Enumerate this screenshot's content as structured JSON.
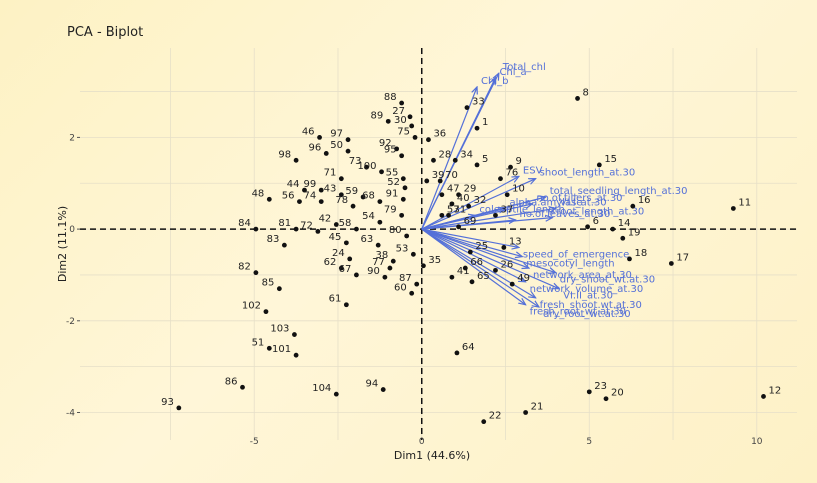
{
  "chart_data": {
    "type": "scatter",
    "title": "PCA - Biplot",
    "xlabel": "Dim1 (44.6%)",
    "ylabel": "Dim2 (11.1%)",
    "xlim": [
      -10.2,
      11.2
    ],
    "ylim": [
      -4.6,
      3.95
    ],
    "x_ticks": [
      -5,
      0,
      5,
      10
    ],
    "y_ticks": [
      -4,
      -2,
      0,
      2
    ],
    "grid": true,
    "colors": {
      "points": "#111111",
      "variables": "#5470d8",
      "grid": "#e6dfc8",
      "zero_line": "#111111"
    },
    "individuals": [
      {
        "label": "1",
        "x": 1.65,
        "y": 2.2
      },
      {
        "label": "5",
        "x": 1.65,
        "y": 1.4
      },
      {
        "label": "6",
        "x": 4.95,
        "y": 0.05
      },
      {
        "label": "8",
        "x": 4.65,
        "y": 2.85
      },
      {
        "label": "9",
        "x": 2.65,
        "y": 1.35
      },
      {
        "label": "10",
        "x": 2.55,
        "y": 0.75
      },
      {
        "label": "11",
        "x": 9.3,
        "y": 0.45
      },
      {
        "label": "12",
        "x": 10.2,
        "y": -3.65
      },
      {
        "label": "13",
        "x": 2.45,
        "y": -0.4
      },
      {
        "label": "14",
        "x": 5.7,
        "y": 0.0
      },
      {
        "label": "15",
        "x": 5.3,
        "y": 1.4
      },
      {
        "label": "16",
        "x": 6.3,
        "y": 0.5
      },
      {
        "label": "17",
        "x": 7.45,
        "y": -0.75
      },
      {
        "label": "18",
        "x": 6.2,
        "y": -0.65
      },
      {
        "label": "19",
        "x": 6.0,
        "y": -0.2
      },
      {
        "label": "20",
        "x": 5.5,
        "y": -3.7
      },
      {
        "label": "21",
        "x": 3.1,
        "y": -4.0
      },
      {
        "label": "22",
        "x": 1.85,
        "y": -4.2
      },
      {
        "label": "23",
        "x": 5.0,
        "y": -3.55
      },
      {
        "label": "24",
        "x": -2.15,
        "y": -0.65
      },
      {
        "label": "25",
        "x": 1.45,
        "y": -0.5
      },
      {
        "label": "26",
        "x": 2.2,
        "y": -0.9
      },
      {
        "label": "27",
        "x": -0.35,
        "y": 2.45
      },
      {
        "label": "28",
        "x": 0.35,
        "y": 1.5
      },
      {
        "label": "29",
        "x": 1.1,
        "y": 0.75
      },
      {
        "label": "30",
        "x": -0.3,
        "y": 2.25
      },
      {
        "label": "31",
        "x": 0.8,
        "y": 0.3
      },
      {
        "label": "32",
        "x": 1.4,
        "y": 0.5
      },
      {
        "label": "33",
        "x": 1.35,
        "y": 2.65
      },
      {
        "label": "34",
        "x": 1.0,
        "y": 1.5
      },
      {
        "label": "35",
        "x": 0.05,
        "y": -0.8
      },
      {
        "label": "36",
        "x": 0.2,
        "y": 1.95
      },
      {
        "label": "37",
        "x": 2.2,
        "y": 0.3
      },
      {
        "label": "38",
        "x": -0.85,
        "y": -0.7
      },
      {
        "label": "39",
        "x": 0.15,
        "y": 1.05
      },
      {
        "label": "40",
        "x": 0.9,
        "y": 0.55
      },
      {
        "label": "41",
        "x": 0.9,
        "y": -1.05
      },
      {
        "label": "42",
        "x": -2.55,
        "y": 0.1
      },
      {
        "label": "43",
        "x": -2.4,
        "y": 0.75
      },
      {
        "label": "44",
        "x": -3.5,
        "y": 0.85
      },
      {
        "label": "45",
        "x": -2.25,
        "y": -0.3
      },
      {
        "label": "46",
        "x": -3.05,
        "y": 2.0
      },
      {
        "label": "47",
        "x": 0.6,
        "y": 0.75
      },
      {
        "label": "48",
        "x": -4.55,
        "y": 0.65
      },
      {
        "label": "49",
        "x": 2.7,
        "y": -1.2
      },
      {
        "label": "50",
        "x": -2.2,
        "y": 1.7
      },
      {
        "label": "51",
        "x": -4.55,
        "y": -2.6
      },
      {
        "label": "52",
        "x": -0.5,
        "y": 0.9
      },
      {
        "label": "53",
        "x": -0.25,
        "y": -0.55
      },
      {
        "label": "54",
        "x": -1.25,
        "y": 0.15
      },
      {
        "label": "55",
        "x": -0.55,
        "y": 1.1
      },
      {
        "label": "56",
        "x": -3.65,
        "y": 0.6
      },
      {
        "label": "57",
        "x": 0.6,
        "y": 0.3
      },
      {
        "label": "58",
        "x": -1.95,
        "y": 0.0
      },
      {
        "label": "59",
        "x": -1.75,
        "y": 0.7
      },
      {
        "label": "60",
        "x": -0.3,
        "y": -1.4
      },
      {
        "label": "61",
        "x": -2.25,
        "y": -1.65
      },
      {
        "label": "62",
        "x": -2.4,
        "y": -0.85
      },
      {
        "label": "63",
        "x": -1.3,
        "y": -0.35
      },
      {
        "label": "64",
        "x": 1.05,
        "y": -2.7
      },
      {
        "label": "65",
        "x": 1.5,
        "y": -1.15
      },
      {
        "label": "66",
        "x": 1.3,
        "y": -0.85
      },
      {
        "label": "67",
        "x": -1.95,
        "y": -1.0
      },
      {
        "label": "68",
        "x": -1.25,
        "y": 0.6
      },
      {
        "label": "69",
        "x": 1.1,
        "y": 0.05
      },
      {
        "label": "70",
        "x": 0.55,
        "y": 1.05
      },
      {
        "label": "71",
        "x": -2.4,
        "y": 1.1
      },
      {
        "label": "72",
        "x": -3.1,
        "y": -0.05
      },
      {
        "label": "73",
        "x": -1.65,
        "y": 1.35
      },
      {
        "label": "74",
        "x": -3.0,
        "y": 0.6
      },
      {
        "label": "75",
        "x": -0.2,
        "y": 2.0
      },
      {
        "label": "76",
        "x": 2.35,
        "y": 1.1
      },
      {
        "label": "77",
        "x": -0.95,
        "y": -0.85
      },
      {
        "label": "78",
        "x": -2.05,
        "y": 0.5
      },
      {
        "label": "79",
        "x": -0.6,
        "y": 0.3
      },
      {
        "label": "80",
        "x": -0.45,
        "y": -0.15
      },
      {
        "label": "81",
        "x": -3.75,
        "y": 0.0
      },
      {
        "label": "82",
        "x": -4.95,
        "y": -0.95
      },
      {
        "label": "83",
        "x": -4.1,
        "y": -0.35
      },
      {
        "label": "84",
        "x": -4.95,
        "y": 0.0
      },
      {
        "label": "85",
        "x": -4.25,
        "y": -1.3
      },
      {
        "label": "86",
        "x": -5.35,
        "y": -3.45
      },
      {
        "label": "87",
        "x": -0.15,
        "y": -1.2
      },
      {
        "label": "88",
        "x": -0.6,
        "y": 2.75
      },
      {
        "label": "89",
        "x": -1.0,
        "y": 2.35
      },
      {
        "label": "90",
        "x": -1.1,
        "y": -1.05
      },
      {
        "label": "91",
        "x": -0.55,
        "y": 0.65
      },
      {
        "label": "92",
        "x": -0.75,
        "y": 1.75
      },
      {
        "label": "93",
        "x": -7.25,
        "y": -3.9
      },
      {
        "label": "94",
        "x": -1.15,
        "y": -3.5
      },
      {
        "label": "95",
        "x": -0.6,
        "y": 1.6
      },
      {
        "label": "96",
        "x": -2.85,
        "y": 1.65
      },
      {
        "label": "97",
        "x": -2.2,
        "y": 1.95
      },
      {
        "label": "98",
        "x": -3.75,
        "y": 1.5
      },
      {
        "label": "99",
        "x": -3.0,
        "y": 0.85
      },
      {
        "label": "100",
        "x": -1.2,
        "y": 1.25
      },
      {
        "label": "101",
        "x": -3.75,
        "y": -2.75
      },
      {
        "label": "102",
        "x": -4.65,
        "y": -1.8
      },
      {
        "label": "103",
        "x": -3.8,
        "y": -2.3
      },
      {
        "label": "104",
        "x": -2.55,
        "y": -3.6
      }
    ],
    "variables": [
      {
        "label": "Total_chl",
        "x": 2.3,
        "y": 3.4
      },
      {
        "label": "Chl_a",
        "x": 2.2,
        "y": 3.3
      },
      {
        "label": "Chl_b",
        "x": 1.65,
        "y": 3.1
      },
      {
        "label": "ESV",
        "x": 2.9,
        "y": 1.15
      },
      {
        "label": "shoot_length_at.30",
        "x": 3.4,
        "y": 1.1
      },
      {
        "label": "total_seedling_length_at.30",
        "x": 3.7,
        "y": 0.7
      },
      {
        "label": "no.of.tillers_at.30",
        "x": 3.3,
        "y": 0.55
      },
      {
        "label": "VI.I_at.30",
        "x": 4.0,
        "y": 0.45
      },
      {
        "label": "root_length_at.30",
        "x": 3.9,
        "y": 0.25
      },
      {
        "label": "no.of.leaves_at.30",
        "x": 2.8,
        "y": 0.2
      },
      {
        "label": "coleoptile_length",
        "x": 1.6,
        "y": 0.3
      },
      {
        "label": "alpha.amylase",
        "x": 2.5,
        "y": 0.45
      },
      {
        "label": "speed_of_emergence",
        "x": 2.9,
        "y": -0.4
      },
      {
        "label": "mesocotyl_length",
        "x": 3.0,
        "y": -0.6
      },
      {
        "label": "network_area_at.30",
        "x": 3.2,
        "y": -0.85
      },
      {
        "label": "network_volume_at.30",
        "x": 3.1,
        "y": -1.15
      },
      {
        "label": "dry_shoot_wt.at.30",
        "x": 4.0,
        "y": -0.95
      },
      {
        "label": "VI.II_at.30",
        "x": 4.1,
        "y": -1.3
      },
      {
        "label": "fresh_shoot.wt.at.30",
        "x": 3.4,
        "y": -1.5
      },
      {
        "label": "fresh_root_wt.at.30",
        "x": 3.1,
        "y": -1.65
      },
      {
        "label": "dry_root_wt.at.30",
        "x": 3.5,
        "y": -1.7
      }
    ]
  }
}
